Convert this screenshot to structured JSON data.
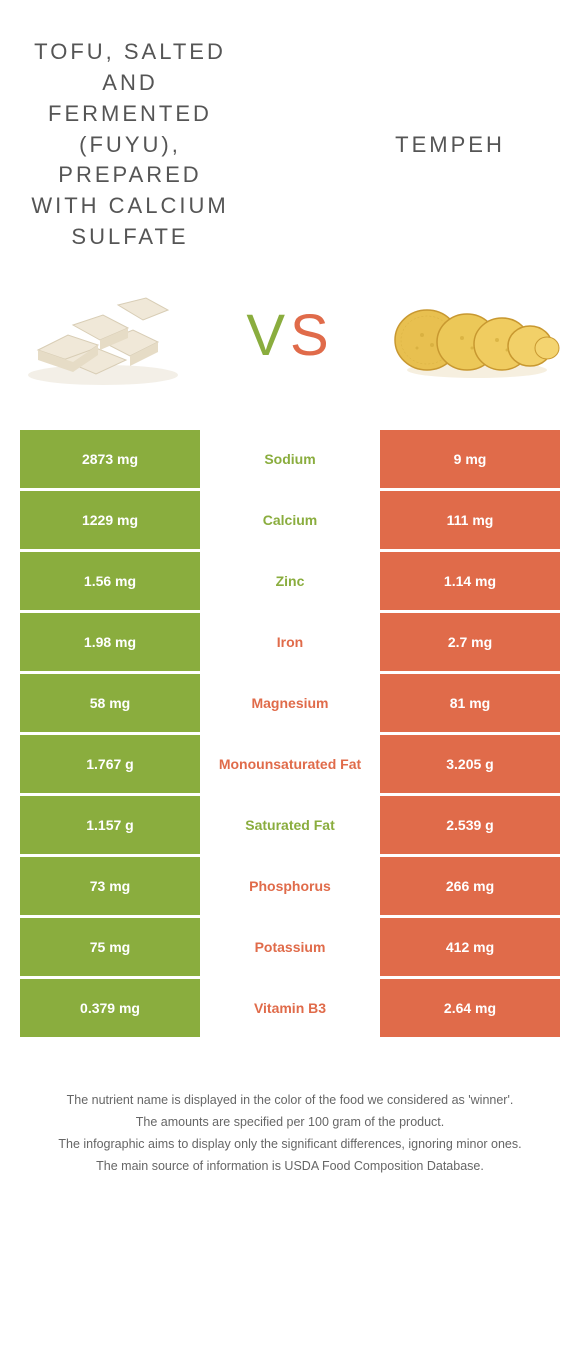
{
  "food_left": {
    "title": "TOFU, SALTED AND FERMENTED (FUYU), PREPARED WITH CALCIUM SULFATE"
  },
  "food_right": {
    "title": "TEMPEH"
  },
  "vs": {
    "v": "V",
    "s": "S"
  },
  "colors": {
    "left": "#8aad3e",
    "right": "#e06b4a",
    "text": "#555555",
    "bg": "#ffffff"
  },
  "table": {
    "rows": [
      {
        "left": "2873 mg",
        "mid": "Sodium",
        "right": "9 mg",
        "winner": "left"
      },
      {
        "left": "1229 mg",
        "mid": "Calcium",
        "right": "111 mg",
        "winner": "left"
      },
      {
        "left": "1.56 mg",
        "mid": "Zinc",
        "right": "1.14 mg",
        "winner": "left"
      },
      {
        "left": "1.98 mg",
        "mid": "Iron",
        "right": "2.7 mg",
        "winner": "right"
      },
      {
        "left": "58 mg",
        "mid": "Magnesium",
        "right": "81 mg",
        "winner": "right"
      },
      {
        "left": "1.767 g",
        "mid": "Monounsaturated Fat",
        "right": "3.205 g",
        "winner": "right"
      },
      {
        "left": "1.157 g",
        "mid": "Saturated Fat",
        "right": "2.539 g",
        "winner": "left"
      },
      {
        "left": "73 mg",
        "mid": "Phosphorus",
        "right": "266 mg",
        "winner": "right"
      },
      {
        "left": "75 mg",
        "mid": "Potassium",
        "right": "412 mg",
        "winner": "right"
      },
      {
        "left": "0.379 mg",
        "mid": "Vitamin B3",
        "right": "2.64 mg",
        "winner": "right"
      }
    ]
  },
  "footer": {
    "lines": [
      "The nutrient name is displayed in the color of the food we considered as 'winner'.",
      "The amounts are specified per 100 gram of the product.",
      "The infographic aims to display only the significant differences, ignoring minor ones.",
      "The main source of information is USDA Food Composition Database."
    ]
  }
}
